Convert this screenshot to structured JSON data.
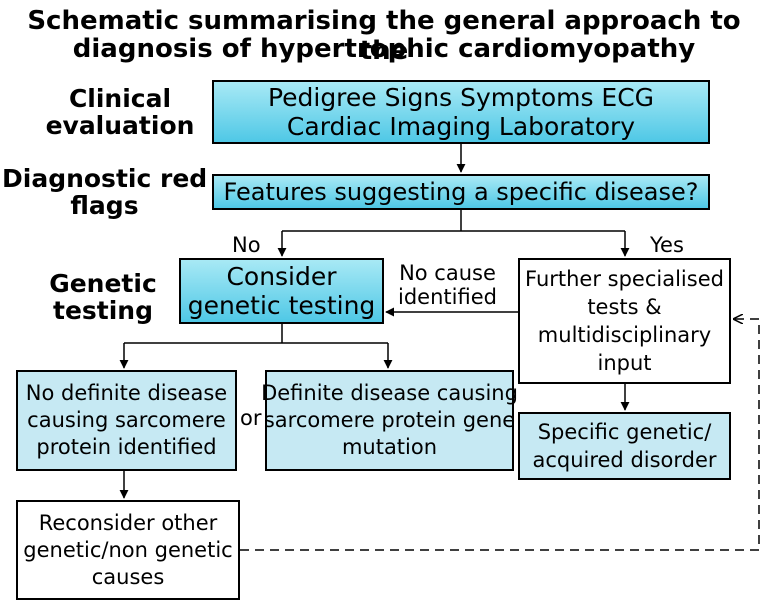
{
  "title": {
    "line1": "Schematic summarising the general approach to the",
    "line2": "diagnosis of hypertrophic cardiomyopathy"
  },
  "stages": {
    "clinical": [
      "Clinical",
      "evaluation"
    ],
    "red_flags": [
      "Diagnostic red",
      "flags"
    ],
    "genetic": [
      "Genetic",
      "testing"
    ]
  },
  "boxes": {
    "clinical_eval": [
      "Pedigree Signs Symptoms ECG",
      "Cardiac Imaging Laboratory"
    ],
    "features": [
      "Features suggesting a specific disease?"
    ],
    "consider_genetic": [
      "Consider",
      "genetic testing"
    ],
    "further_tests": [
      "Further specialised",
      "tests &",
      "multidisciplinary",
      "input"
    ],
    "no_definite": [
      "No definite disease",
      "causing sarcomere",
      "protein identified"
    ],
    "definite": [
      "Definite disease causing",
      "sarcomere protein gene",
      "mutation"
    ],
    "specific_disorder": [
      "Specific genetic/",
      "acquired disorder"
    ],
    "reconsider": [
      "Reconsider other",
      "genetic/non genetic",
      "causes"
    ]
  },
  "labels": {
    "no": "No",
    "yes": "Yes",
    "no_cause": [
      "No cause",
      "identified"
    ],
    "or": "or"
  },
  "colors": {
    "cyan_top": "#a8e9f5",
    "cyan_bottom": "#4fc8e6",
    "pale_blue": "#c6e9f3",
    "line": "#000000"
  }
}
